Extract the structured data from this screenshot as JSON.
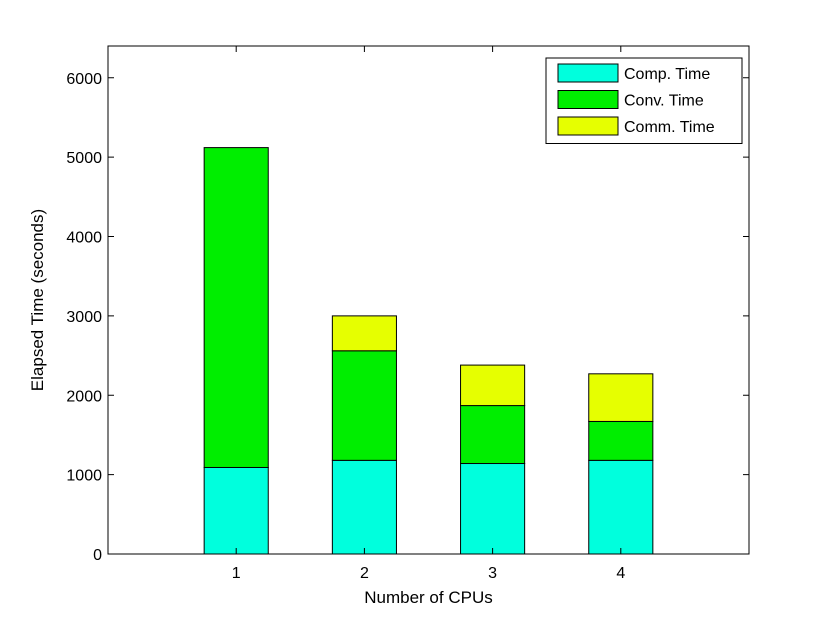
{
  "chart_data": {
    "type": "bar",
    "stacked": true,
    "title": "",
    "xlabel": "Number of CPUs",
    "ylabel": "Elapsed Time (seconds)",
    "categories": [
      "1",
      "2",
      "3",
      "4"
    ],
    "xlim": [
      0,
      5
    ],
    "ylim": [
      0,
      6400
    ],
    "yticks": [
      0,
      1000,
      2000,
      3000,
      4000,
      5000,
      6000
    ],
    "grid": false,
    "legend_position": "top-right",
    "series": [
      {
        "name": "Comp. Time",
        "color": "#00ffdd",
        "values": [
          1090,
          1180,
          1140,
          1180
        ]
      },
      {
        "name": "Conv. Time",
        "color": "#00ee00",
        "values": [
          4030,
          1380,
          730,
          490
        ]
      },
      {
        "name": "Comm. Time",
        "color": "#e6ff00",
        "values": [
          0,
          440,
          510,
          600
        ]
      }
    ]
  }
}
